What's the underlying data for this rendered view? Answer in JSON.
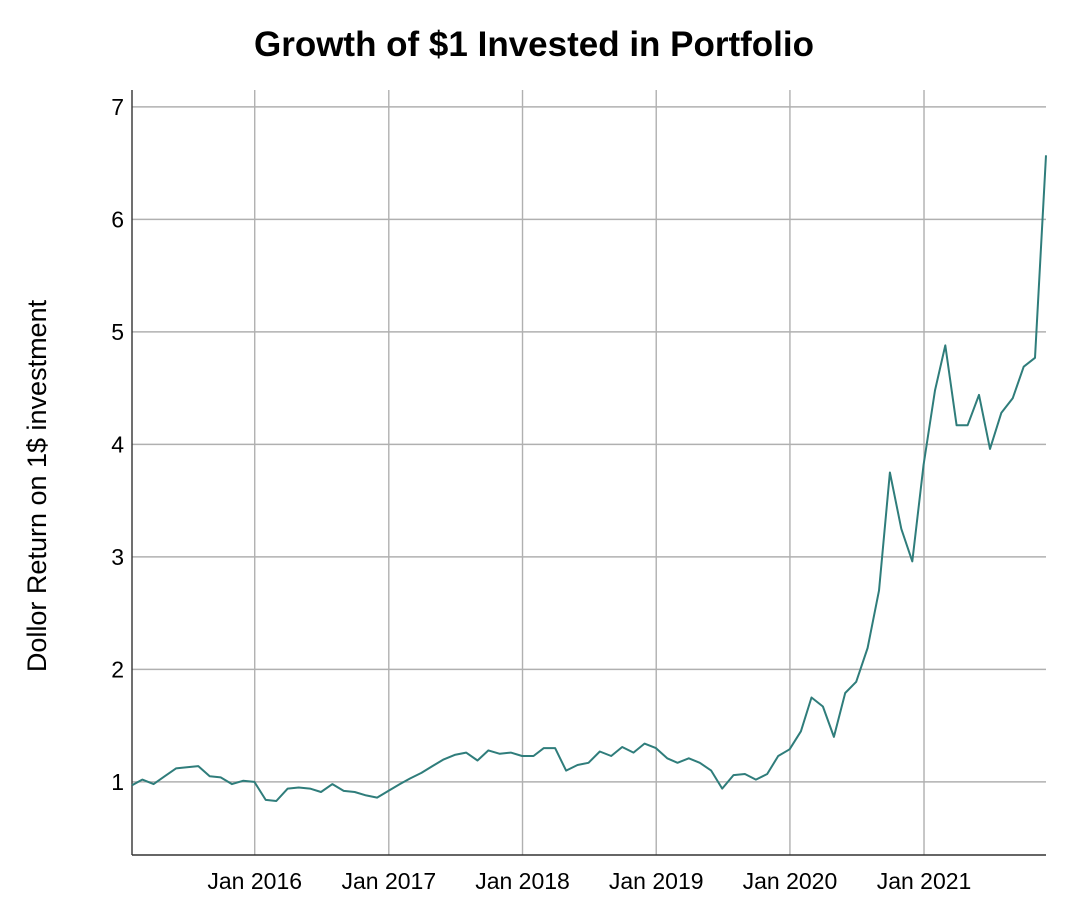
{
  "chart_data": {
    "type": "line",
    "title": "Growth of $1 Invested in Portfolio",
    "xlabel": "",
    "ylabel": "Dollor Return on 1$ investment",
    "x_tick_labels": [
      "Jan 2016",
      "Jan 2017",
      "Jan 2018",
      "Jan 2019",
      "Jan 2020",
      "Jan 2021"
    ],
    "y_tick_labels": [
      "1",
      "2",
      "3",
      "4",
      "5",
      "6",
      "7"
    ],
    "y_ticks": [
      1,
      2,
      3,
      4,
      5,
      6,
      7
    ],
    "ylim": [
      0.35,
      7.15
    ],
    "xlim": [
      "2015-01-31",
      "2021-11-30"
    ],
    "grid": true,
    "line_color": "#2f7d7b",
    "series": [
      {
        "x": [
          "2015-01-31",
          "2015-02-28",
          "2015-03-31",
          "2015-04-30",
          "2015-05-31",
          "2015-06-30",
          "2015-07-31",
          "2015-08-31",
          "2015-09-30",
          "2015-10-31",
          "2015-11-30",
          "2015-12-31",
          "2016-01-31",
          "2016-02-29",
          "2016-03-31",
          "2016-04-30",
          "2016-05-31",
          "2016-06-30",
          "2016-07-31",
          "2016-08-31",
          "2016-09-30",
          "2016-10-31",
          "2016-11-30",
          "2016-12-31",
          "2017-01-31",
          "2017-02-28",
          "2017-03-31",
          "2017-04-30",
          "2017-05-31",
          "2017-06-30",
          "2017-07-31",
          "2017-08-31",
          "2017-09-30",
          "2017-10-31",
          "2017-11-30",
          "2017-12-31",
          "2018-01-31",
          "2018-02-28",
          "2018-03-31",
          "2018-04-30",
          "2018-05-31",
          "2018-06-30",
          "2018-07-31",
          "2018-08-31",
          "2018-09-30",
          "2018-10-31",
          "2018-11-30",
          "2018-12-31",
          "2019-01-31",
          "2019-02-28",
          "2019-03-31",
          "2019-04-30",
          "2019-05-31",
          "2019-06-30",
          "2019-07-31",
          "2019-08-31",
          "2019-09-30",
          "2019-10-31",
          "2019-11-30",
          "2019-12-31",
          "2020-01-31",
          "2020-02-29",
          "2020-03-31",
          "2020-04-30",
          "2020-05-31",
          "2020-06-30",
          "2020-07-31",
          "2020-08-31",
          "2020-09-30",
          "2020-10-31",
          "2020-11-30",
          "2020-12-31",
          "2021-01-31",
          "2021-02-28",
          "2021-03-31",
          "2021-04-30",
          "2021-05-31",
          "2021-06-30",
          "2021-07-31",
          "2021-08-31",
          "2021-09-30",
          "2021-10-31",
          "2021-11-30"
        ],
        "values": [
          0.97,
          1.02,
          0.98,
          1.05,
          1.12,
          1.13,
          1.14,
          1.05,
          1.04,
          0.98,
          1.01,
          1.0,
          0.84,
          0.83,
          0.94,
          0.95,
          0.94,
          0.91,
          0.98,
          0.92,
          0.91,
          0.88,
          0.86,
          0.92,
          0.98,
          1.03,
          1.08,
          1.14,
          1.2,
          1.24,
          1.26,
          1.19,
          1.28,
          1.25,
          1.26,
          1.23,
          1.23,
          1.3,
          1.3,
          1.1,
          1.15,
          1.17,
          1.27,
          1.23,
          1.31,
          1.26,
          1.34,
          1.3,
          1.21,
          1.17,
          1.21,
          1.17,
          1.1,
          0.94,
          1.06,
          1.07,
          1.02,
          1.07,
          1.23,
          1.29,
          1.45,
          1.75,
          1.67,
          1.4,
          1.79,
          1.89,
          2.19,
          2.7,
          3.75,
          3.25,
          2.96,
          3.82,
          4.48,
          4.88,
          4.17,
          4.17,
          4.44,
          3.96,
          4.28,
          4.41,
          4.69,
          4.77,
          6.57
        ]
      }
    ]
  }
}
